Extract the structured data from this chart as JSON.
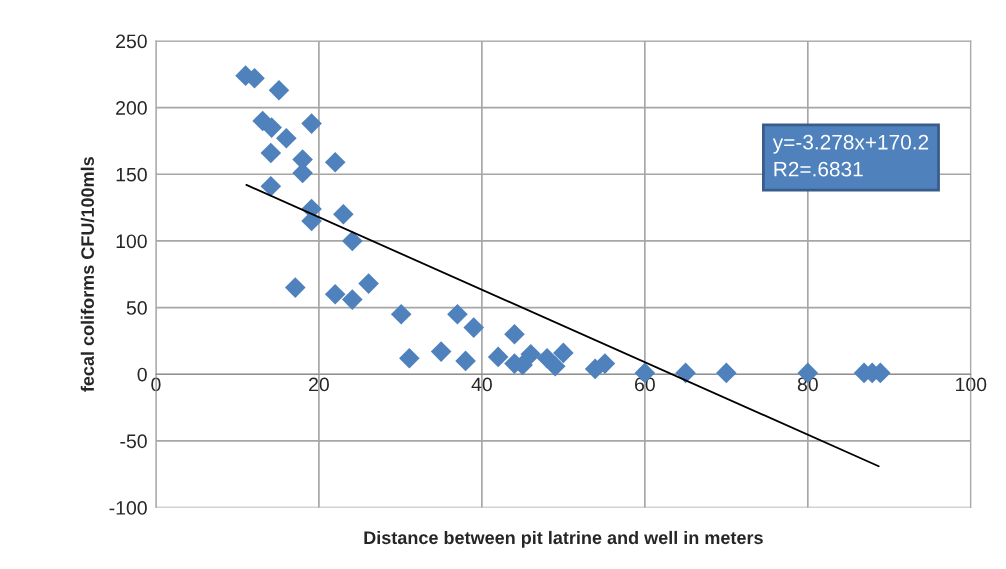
{
  "chart_data": {
    "type": "scatter",
    "xlabel": "Distance between pit latrine and well in meters",
    "ylabel": "fecal coliforms CFU/100mls",
    "xlim": [
      0,
      100
    ],
    "xticks": [
      0,
      20,
      40,
      60,
      80,
      100
    ],
    "ylim": [
      -100,
      250
    ],
    "yticks": [
      -100,
      -50,
      0,
      50,
      100,
      150,
      200,
      250
    ],
    "grid": true,
    "marker": "diamond",
    "legend": false,
    "annotations": [
      "y=-3.278x+170.2",
      "R2=.6831"
    ],
    "series": [
      {
        "color": "#4f81bd",
        "x": [
          11,
          12.1,
          15.1,
          13.1,
          14.2,
          19.1,
          16,
          14.1,
          18,
          22,
          18,
          14.1,
          19.1,
          23,
          19.1,
          24.1,
          17.1,
          22,
          26.1,
          24.1,
          30.1,
          31.1,
          35,
          37,
          38,
          39,
          42,
          44,
          44,
          45,
          46,
          48,
          49,
          50,
          53.9,
          55.1,
          60,
          65,
          70,
          80,
          86.9,
          87.9,
          88.9
        ],
        "values": [
          224,
          222,
          213,
          190,
          185,
          188,
          177,
          166,
          161,
          159,
          151,
          141,
          124,
          120,
          115,
          100,
          65,
          60,
          68,
          56,
          45,
          12,
          17,
          45,
          10,
          35,
          13,
          30,
          8,
          7,
          15,
          12,
          6,
          16,
          4,
          8,
          1,
          1,
          1,
          1,
          1,
          1,
          1
        ]
      },
      {
        "type": "line",
        "color": "#000000",
        "marker": "none",
        "line_style": "solid",
        "x": [
          11.1,
          88.7
        ],
        "values": [
          142,
          -69
        ]
      }
    ]
  }
}
